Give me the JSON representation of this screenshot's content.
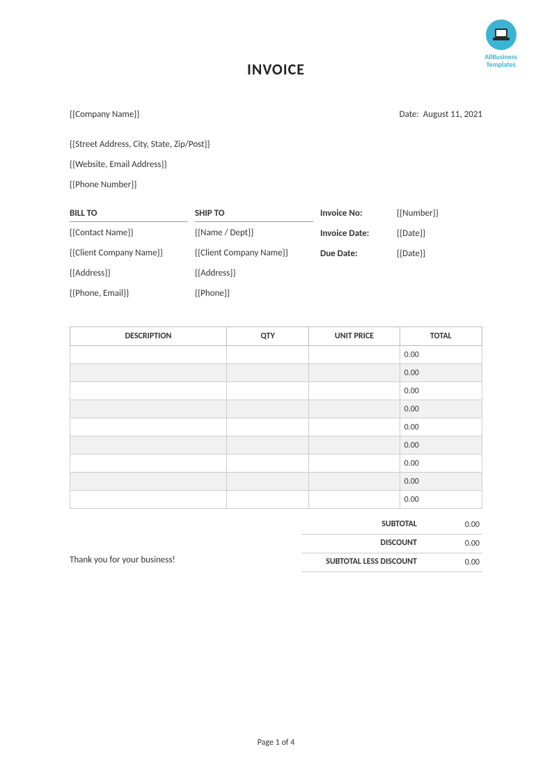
{
  "logo": {
    "line1": "AllBusiness",
    "line2": "Templates",
    "circle_color": "#3bb4d4",
    "laptop_body": "#2a2a2a",
    "laptop_screen": "#ffffff"
  },
  "title": "INVOICE",
  "header": {
    "company_name": "{{Company Name}}",
    "date_label": "Date:  ",
    "date_value": "August 11, 2021",
    "street": "{{Street Address, City, State, Zip/Post}}",
    "website_email": "{{Website, Email Address}}",
    "phone": "{{Phone Number}}"
  },
  "bill_to": {
    "header": "BILL TO",
    "lines": [
      "{{Contact Name}}",
      "{{Client Company Name}}",
      "{{Address}}",
      "{{Phone, Email}}"
    ]
  },
  "ship_to": {
    "header": "SHIP TO",
    "lines": [
      "{{Name / Dept}}",
      "{{Client Company Name}}",
      "{{Address}}",
      "{{Phone}}"
    ]
  },
  "meta": {
    "labels": [
      "Invoice No:",
      "Invoice Date:",
      "Due Date:"
    ],
    "values": [
      "{{Number}}",
      "{{Date}}",
      "{{Date}}"
    ]
  },
  "items_table": {
    "columns": [
      "DESCRIPTION",
      "QTY",
      "UNIT PRICE",
      "TOTAL"
    ],
    "rows": [
      {
        "desc": "",
        "qty": "",
        "unit": "",
        "total": "0.00",
        "alt": false
      },
      {
        "desc": "",
        "qty": "",
        "unit": "",
        "total": "0.00",
        "alt": true
      },
      {
        "desc": "",
        "qty": "",
        "unit": "",
        "total": "0.00",
        "alt": false
      },
      {
        "desc": "",
        "qty": "",
        "unit": "",
        "total": "0.00",
        "alt": true
      },
      {
        "desc": "",
        "qty": "",
        "unit": "",
        "total": "0.00",
        "alt": false
      },
      {
        "desc": "",
        "qty": "",
        "unit": "",
        "total": "0.00",
        "alt": true
      },
      {
        "desc": "",
        "qty": "",
        "unit": "",
        "total": "0.00",
        "alt": false
      },
      {
        "desc": "",
        "qty": "",
        "unit": "",
        "total": "0.00",
        "alt": true
      },
      {
        "desc": "",
        "qty": "",
        "unit": "",
        "total": "0.00",
        "alt": false
      }
    ],
    "alt_bg": "#f1f1f1",
    "border_color": "#cccccc"
  },
  "totals": {
    "rows": [
      {
        "label": "SUBTOTAL",
        "value": "0.00"
      },
      {
        "label": "DISCOUNT",
        "value": "0.00"
      },
      {
        "label": "SUBTOTAL LESS DISCOUNT",
        "value": "0.00"
      }
    ]
  },
  "thanks": "Thank you for your business!",
  "footer": "Page 1 of 4",
  "colors": {
    "text": "#333333",
    "background": "#ffffff",
    "border": "#cccccc"
  }
}
